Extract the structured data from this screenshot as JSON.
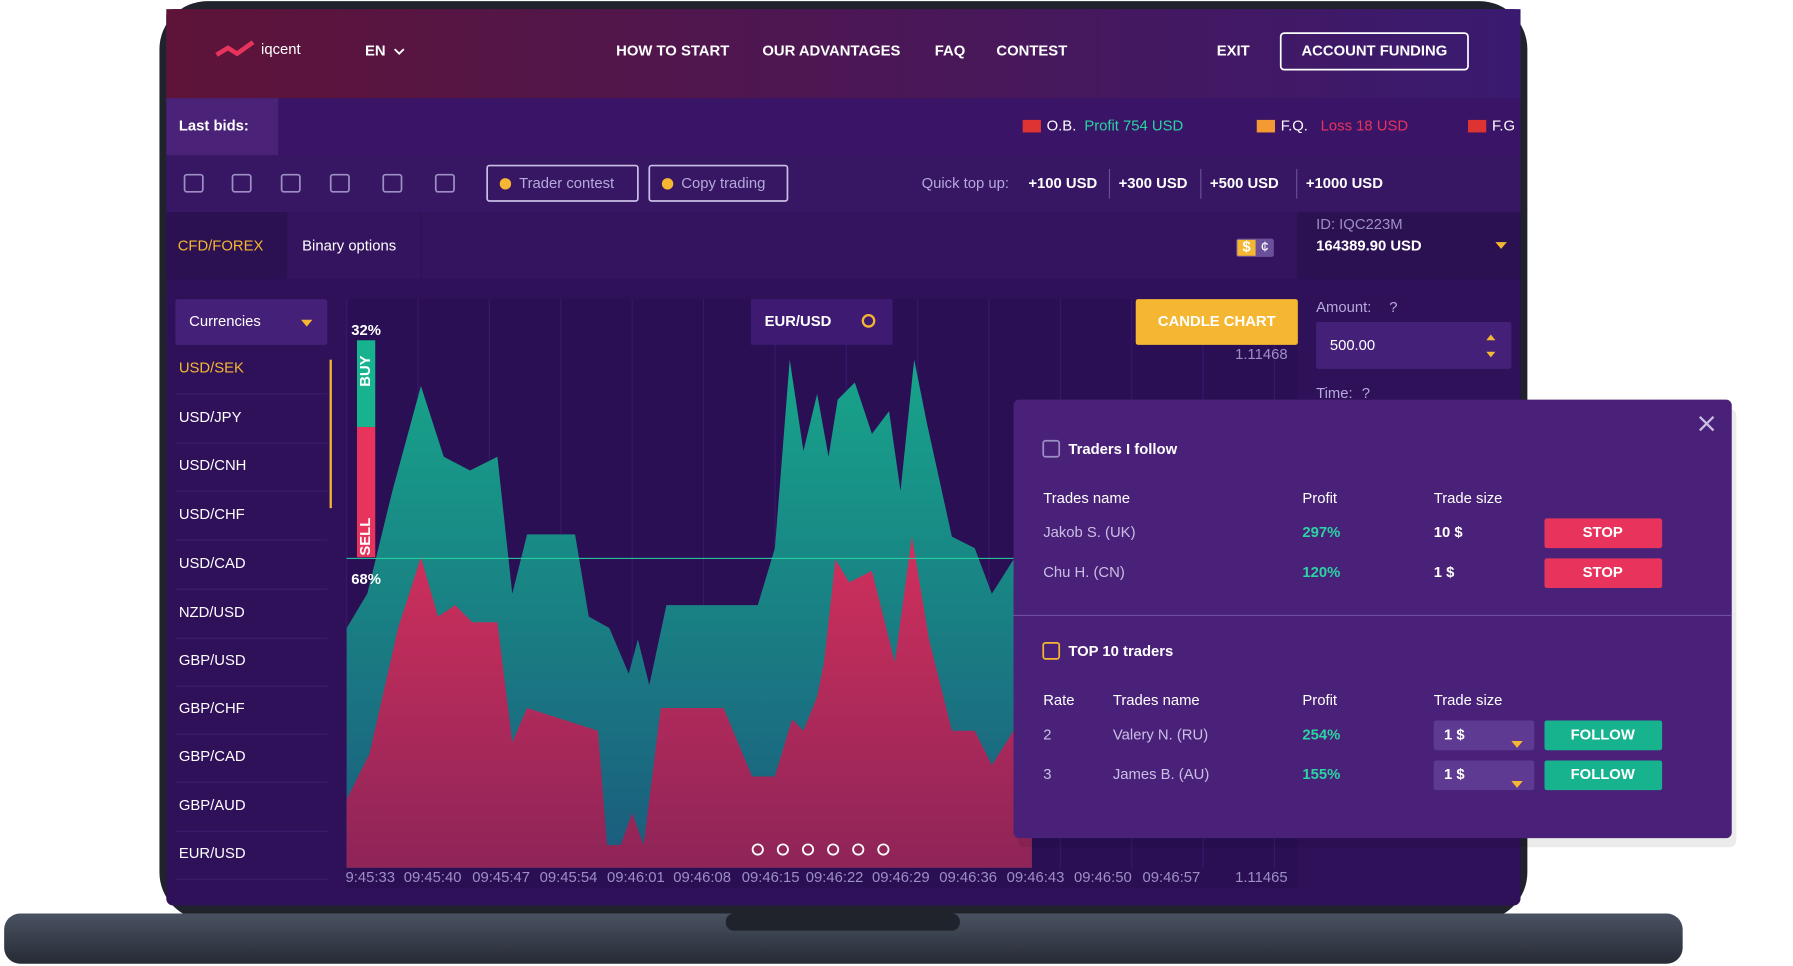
{
  "nav": {
    "logo": "iqcent",
    "lang": "EN",
    "links": [
      "HOW TO START",
      "OUR ADVANTAGES",
      "FAQ",
      "CONTEST"
    ],
    "exit": "EXIT",
    "cta": "ACCOUNT FUNDING"
  },
  "bids": {
    "label": "Last bids:",
    "items": [
      {
        "trader": "O.B.",
        "result": "Profit 754 USD"
      },
      {
        "trader": "F.Q.",
        "result": "Loss 18 USD"
      },
      {
        "trader": "F.G"
      }
    ]
  },
  "toolbar": {
    "buttons": [
      "Trader contest",
      "Copy trading"
    ],
    "quick_label": "Quick top up:",
    "amounts": [
      "+100 USD",
      "+300 USD",
      "+500 USD",
      "+1000 USD"
    ]
  },
  "tabs": [
    "CFD/FOREX",
    "Binary options"
  ],
  "wallet": [
    "$",
    "¢"
  ],
  "account": {
    "id": "ID: IQC223M",
    "balance": "164389.90 USD"
  },
  "currencies": {
    "dropdown": "Currencies",
    "pairs": [
      "USD/SEK",
      "USD/JPY",
      "USD/CNH",
      "USD/CHF",
      "USD/CAD",
      "NZD/USD",
      "GBP/USD",
      "GBP/CHF",
      "GBP/CAD",
      "GBP/AUD",
      "EUR/USD"
    ]
  },
  "chart": {
    "search": "EUR/USD",
    "button": "CANDLE CHART",
    "buy_pct": "32%",
    "sell_pct": "68%",
    "buy": "BUY",
    "sell": "SELL",
    "price_top": "1.11468",
    "price_bottom": "1.11465",
    "times": [
      "9:45:33",
      "09:45:40",
      "09:45:47",
      "09:45:54",
      "09:46:01",
      "09:46:08",
      "09:46:15",
      "09:46:22",
      "09:46:29",
      "09:46:36",
      "09:46:43",
      "09:46:50",
      "09:46:57"
    ]
  },
  "trade": {
    "amount_label": "Amount:",
    "amount": "500.00",
    "time_label": "Time:",
    "help": "?"
  },
  "popup": {
    "follow": {
      "title": "Traders I follow",
      "headers": [
        "Trades name",
        "Profit",
        "Trade size"
      ],
      "rows": [
        [
          "Jakob S. (UK)",
          "297%",
          "10 $",
          "STOP"
        ],
        [
          "Chu H. (CN)",
          "120%",
          "1 $",
          "STOP"
        ]
      ]
    },
    "top": {
      "title": "TOP 10 traders",
      "headers": [
        "Rate",
        "Trades name",
        "Profit",
        "Trade size"
      ],
      "rows": [
        [
          "2",
          "Valery N. (RU)",
          "254%",
          "1 $",
          "FOLLOW"
        ],
        [
          "3",
          "James B. (AU)",
          "155%",
          "1 $",
          "FOLLOW"
        ]
      ]
    }
  }
}
